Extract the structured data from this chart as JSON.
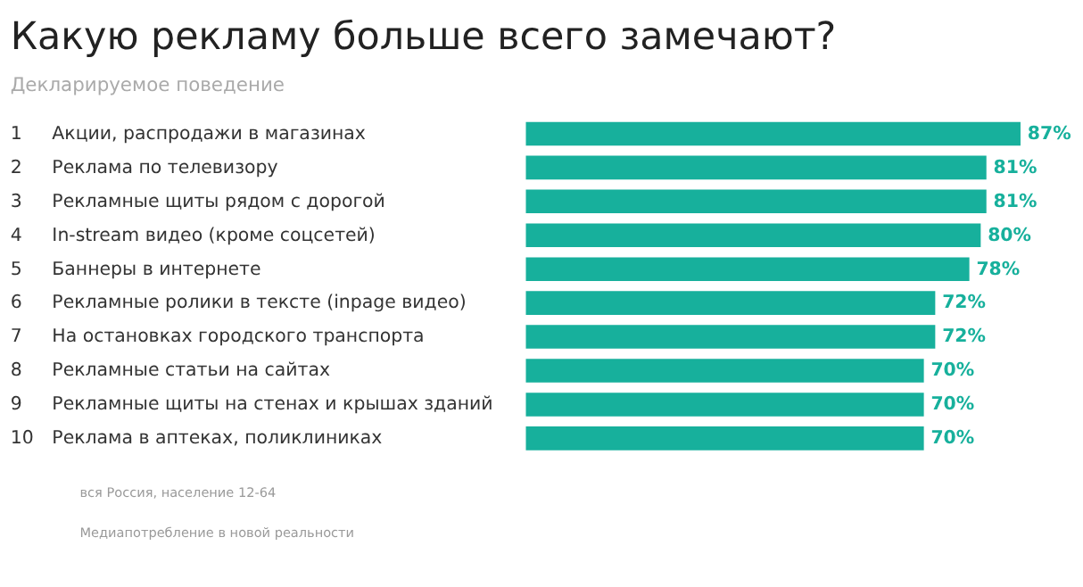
{
  "chart_data": {
    "type": "bar",
    "orientation": "horizontal",
    "title": "Какую рекламу больше всего замечают?",
    "subtitle": "Декларируемое поведение",
    "categories": [
      "1 Акции, распродажи в магазинах",
      "2 Реклама по телевизору",
      "3 Рекламные щиты рядом с дорогой",
      "4 In-stream видео (кроме соцсетей)",
      "5 Баннеры в интернете",
      "6 Рекламные ролики в тексте (inpage видео)",
      "7 На остановках городского транспорта",
      "8 Рекламные статьи на сайтах",
      "9 Рекламные щиты на стенах и крышах зданий",
      "10 Реклама в аптеках, поликлиниках"
    ],
    "values": [
      87,
      81,
      81,
      80,
      78,
      72,
      72,
      70,
      70,
      70
    ],
    "value_labels": [
      "87%",
      "81%",
      "81%",
      "80%",
      "78%",
      "72%",
      "72%",
      "70%",
      "70%",
      "70%"
    ],
    "color": "#17b09c",
    "annotations": [
      "вся Россия, население 12-64",
      "Медиапотребление в новой реальности"
    ]
  }
}
